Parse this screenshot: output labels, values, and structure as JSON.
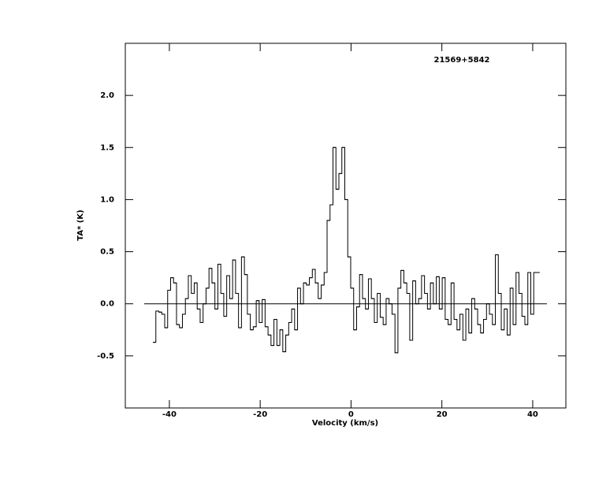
{
  "chart_data": {
    "type": "step",
    "title": "21569+5842",
    "xlabel": "Velocity (km/s)",
    "ylabel": "TA* (K)",
    "x": [
      -43.3,
      -42.65,
      -42.0,
      -41.35,
      -40.7,
      -40.05,
      -39.4,
      -38.75,
      -38.1,
      -37.45,
      -36.8,
      -36.15,
      -35.5,
      -34.85,
      -34.2,
      -33.55,
      -32.9,
      -32.25,
      -31.6,
      -30.95,
      -30.3,
      -29.65,
      -29.0,
      -28.35,
      -27.7,
      -27.05,
      -26.4,
      -25.75,
      -25.1,
      -24.45,
      -23.8,
      -23.15,
      -22.5,
      -21.85,
      -21.2,
      -20.55,
      -19.9,
      -19.25,
      -18.6,
      -17.95,
      -17.3,
      -16.65,
      -16.0,
      -15.35,
      -14.7,
      -14.05,
      -13.4,
      -12.75,
      -12.1,
      -11.45,
      -10.8,
      -10.15,
      -9.5,
      -8.85,
      -8.2,
      -7.55,
      -6.9,
      -6.25,
      -5.6,
      -4.95,
      -4.3,
      -3.65,
      -3.0,
      -2.35,
      -1.7,
      -1.05,
      -0.4,
      0.25,
      0.9,
      1.55,
      2.2,
      2.85,
      3.5,
      4.15,
      4.8,
      5.45,
      6.1,
      6.75,
      7.4,
      8.05,
      8.7,
      9.35,
      10.0,
      10.65,
      11.3,
      11.95,
      12.6,
      13.25,
      13.9,
      14.55,
      15.2,
      15.85,
      16.5,
      17.15,
      17.8,
      18.45,
      19.1,
      19.75,
      20.4,
      21.05,
      21.7,
      22.35,
      23.0,
      23.65,
      24.3,
      24.95,
      25.6,
      26.25,
      26.9,
      27.55,
      28.2,
      28.85,
      29.5,
      30.15,
      30.8,
      31.45,
      32.1,
      32.75,
      33.4,
      34.05,
      34.7,
      35.35,
      36.0,
      36.65,
      37.3,
      37.95,
      38.6,
      39.25,
      39.9,
      40.55,
      41.2
    ],
    "values": [
      -0.37,
      -0.07,
      -0.08,
      -0.1,
      -0.23,
      0.13,
      0.25,
      0.2,
      -0.2,
      -0.23,
      -0.1,
      0.05,
      0.27,
      0.1,
      0.2,
      -0.05,
      -0.18,
      0.0,
      0.15,
      0.34,
      0.2,
      -0.05,
      0.38,
      0.1,
      -0.12,
      0.27,
      0.05,
      0.42,
      0.1,
      -0.23,
      0.45,
      0.28,
      -0.1,
      -0.25,
      -0.22,
      0.03,
      -0.18,
      0.04,
      -0.22,
      -0.3,
      -0.4,
      -0.15,
      -0.4,
      -0.25,
      -0.46,
      -0.3,
      -0.18,
      -0.05,
      -0.25,
      0.15,
      0.0,
      0.2,
      0.18,
      0.25,
      0.33,
      0.2,
      0.05,
      0.18,
      0.3,
      0.8,
      0.95,
      1.5,
      1.1,
      1.25,
      1.5,
      1.0,
      0.45,
      0.15,
      -0.25,
      -0.03,
      0.28,
      0.05,
      -0.05,
      0.24,
      0.05,
      -0.18,
      0.1,
      -0.13,
      -0.2,
      0.05,
      0.0,
      -0.1,
      -0.47,
      0.15,
      0.32,
      0.2,
      0.1,
      -0.35,
      0.22,
      0.0,
      0.05,
      0.27,
      0.1,
      -0.05,
      0.2,
      0.0,
      0.26,
      -0.05,
      0.25,
      -0.15,
      -0.2,
      0.2,
      -0.15,
      -0.25,
      -0.1,
      -0.35,
      -0.05,
      -0.28,
      0.05,
      -0.05,
      -0.2,
      -0.28,
      -0.15,
      0.0,
      -0.1,
      -0.2,
      0.47,
      0.1,
      -0.25,
      -0.05,
      -0.3,
      0.15,
      -0.2,
      0.3,
      0.1,
      -0.12,
      -0.2,
      0.3,
      -0.1,
      0.3,
      0.3
    ],
    "color": "#000000",
    "xlim": [
      -49.7,
      47.3
    ],
    "ylim": [
      -1.0,
      2.5
    ],
    "xticks": [
      -40,
      -20,
      0,
      20,
      40
    ],
    "yticks": [
      {
        "value": -0.5,
        "label": "-0.5"
      },
      {
        "value": 0,
        "label": "0.0"
      },
      {
        "value": 0.5,
        "label": "0.5"
      },
      {
        "value": 1,
        "label": "1.0"
      },
      {
        "value": 1.5,
        "label": "1.5"
      },
      {
        "value": 2,
        "label": "2.0"
      }
    ]
  }
}
